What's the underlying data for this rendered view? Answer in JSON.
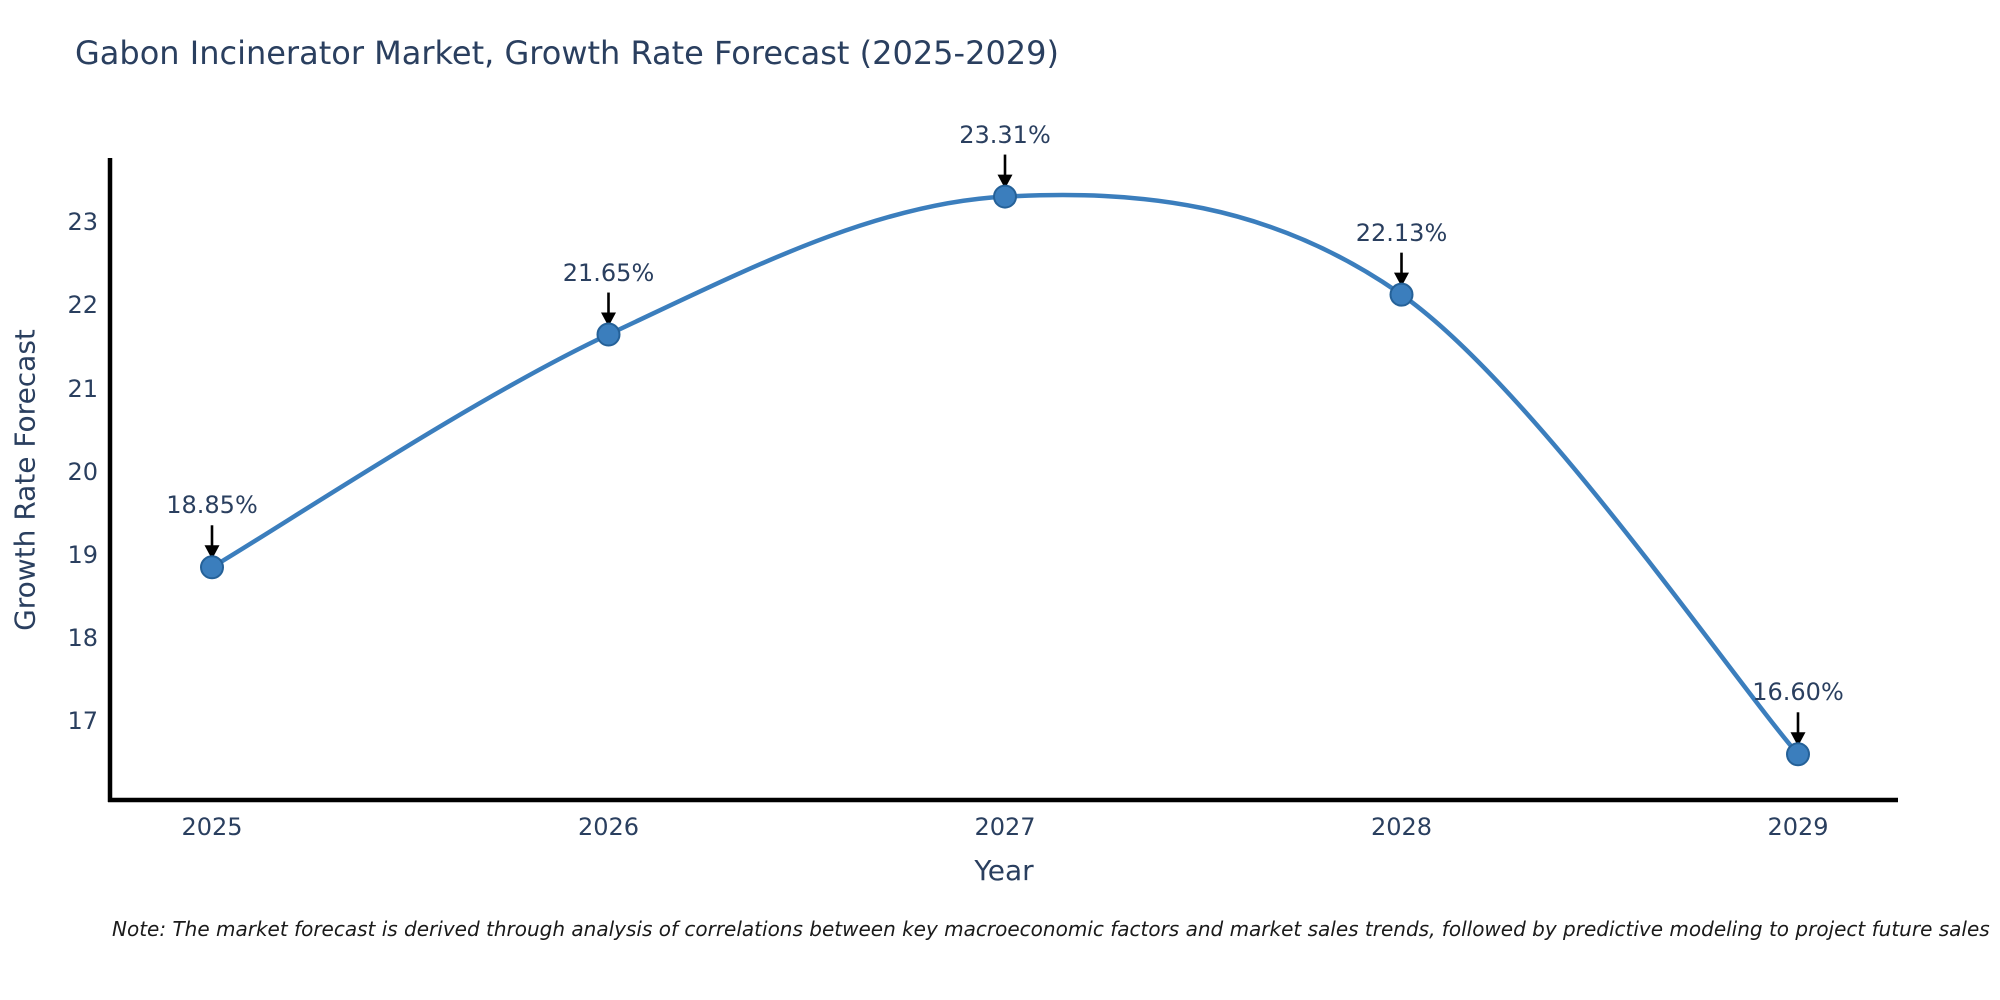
{
  "note": "Note: The market forecast is derived through analysis of correlations between key macroeconomic factors and market sales trends, followed by predictive modeling to project future sales",
  "chart_data": {
    "type": "line",
    "title": "Gabon Incinerator Market, Growth Rate Forecast (2025-2029)",
    "xlabel": "Year",
    "ylabel": "Growth Rate Forecast",
    "categories": [
      "2025",
      "2026",
      "2027",
      "2028",
      "2029"
    ],
    "series": [
      {
        "name": "Growth Rate Forecast",
        "values": [
          18.85,
          21.65,
          23.31,
          22.13,
          16.6
        ],
        "point_labels": [
          "18.85%",
          "21.65%",
          "23.31%",
          "22.13%",
          "16.60%"
        ]
      }
    ],
    "yticks": [
      17,
      18,
      19,
      20,
      21,
      22,
      23
    ],
    "ylim": [
      16.05,
      23.75
    ],
    "grid": false,
    "legend_position": "none",
    "line_shape": "spline",
    "annotations_have_arrows": true,
    "colors": {
      "line": "#3b7ebd",
      "marker_fill": "#3b7ebd",
      "marker_edge": "#256198",
      "axis": "#000000",
      "text": "#2a3f5f",
      "note_text": "#1a1a1a",
      "arrow": "#000000",
      "background": "#ffffff"
    }
  }
}
